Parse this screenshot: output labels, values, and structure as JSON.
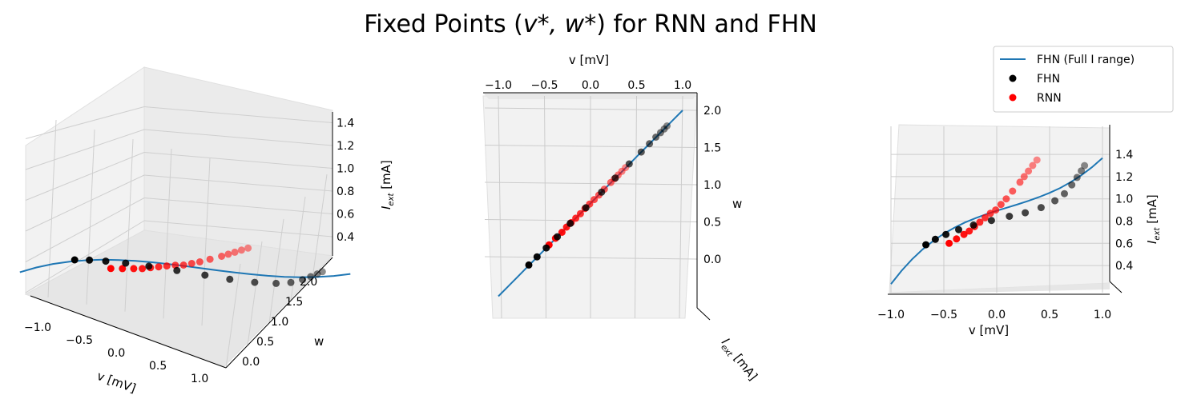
{
  "title_text": "Fixed Points (",
  "title_math": "v*, w*",
  "title_tail": ") for RNN and FHN",
  "legend": [
    {
      "label": "FHN (Full I range)",
      "kind": "line",
      "color": "#1f77b4"
    },
    {
      "label": "FHN",
      "kind": "point",
      "color": "#000000"
    },
    {
      "label": "RNN",
      "kind": "point",
      "color": "#ff0000"
    }
  ],
  "axis_labels": {
    "v": "v [mV]",
    "w": "w",
    "i": "I",
    "i_sub": "ext",
    "i_unit": " [mA]"
  },
  "colors": {
    "fhn_curve": "#1f77b4",
    "fhn_points": "#000000",
    "rnn_points": "#ff0000",
    "pane": "#f2f2f2",
    "grid": "#cccccc"
  },
  "chart_data": {
    "type": "scatter",
    "dimensions": [
      "v",
      "w",
      "I_ext"
    ],
    "axes": {
      "v": {
        "label": "v [mV]",
        "ticks": [
          "−1.0",
          "−0.5",
          "0.0",
          "0.5",
          "1.0"
        ]
      },
      "w": {
        "label": "w",
        "ticks": [
          "0.0",
          "0.5",
          "1.0",
          "1.5",
          "2.0"
        ]
      },
      "I_ext": {
        "label": "I_ext [mA]",
        "ticks": [
          "0.4",
          "0.6",
          "0.8",
          "1.0",
          "1.2",
          "1.4"
        ]
      }
    },
    "series": [
      {
        "name": "FHN (Full I range)",
        "mode": "line",
        "v": [
          -1.0,
          -0.9,
          -0.8,
          -0.7,
          -0.6,
          -0.5,
          -0.4,
          -0.3,
          -0.2,
          -0.1,
          0.0,
          0.1,
          0.2,
          0.3,
          0.4,
          0.5,
          0.6,
          0.7,
          0.8,
          0.9,
          1.0
        ],
        "w": [
          -0.5,
          -0.375,
          -0.25,
          -0.125,
          0.0,
          0.125,
          0.25,
          0.375,
          0.5,
          0.625,
          0.75,
          0.875,
          1.0,
          1.125,
          1.25,
          1.375,
          1.5,
          1.625,
          1.75,
          1.875,
          2.0
        ],
        "I_ext": [
          0.233,
          0.353,
          0.457,
          0.546,
          0.622,
          0.687,
          0.741,
          0.788,
          0.827,
          0.862,
          0.893,
          0.922,
          0.951,
          0.982,
          1.016,
          1.054,
          1.098,
          1.151,
          1.212,
          1.284,
          1.368
        ]
      },
      {
        "name": "FHN",
        "mode": "markers",
        "v": [
          -0.67,
          -0.58,
          -0.48,
          -0.36,
          -0.22,
          -0.05,
          0.12,
          0.27,
          0.42,
          0.55,
          0.64,
          0.71,
          0.76,
          0.8,
          0.83
        ],
        "w": [
          -0.08,
          0.03,
          0.15,
          0.3,
          0.48,
          0.69,
          0.9,
          1.09,
          1.28,
          1.44,
          1.55,
          1.64,
          1.7,
          1.75,
          1.79
        ],
        "I_ext": [
          0.587,
          0.636,
          0.68,
          0.723,
          0.764,
          0.806,
          0.843,
          0.875,
          0.922,
          0.983,
          1.047,
          1.126,
          1.193,
          1.252,
          1.299
        ]
      },
      {
        "name": "RNN",
        "mode": "markers",
        "v": [
          -0.45,
          -0.38,
          -0.31,
          -0.26,
          -0.21,
          -0.16,
          -0.11,
          -0.06,
          -0.01,
          0.04,
          0.09,
          0.15,
          0.22,
          0.26,
          0.3,
          0.34,
          0.38
        ],
        "w": [
          0.19,
          0.28,
          0.36,
          0.43,
          0.49,
          0.55,
          0.61,
          0.68,
          0.74,
          0.8,
          0.86,
          0.94,
          1.03,
          1.08,
          1.13,
          1.18,
          1.23
        ],
        "I_ext": [
          0.6,
          0.64,
          0.68,
          0.71,
          0.75,
          0.79,
          0.83,
          0.87,
          0.9,
          0.95,
          1.0,
          1.07,
          1.15,
          1.2,
          1.25,
          1.3,
          1.35
        ]
      }
    ]
  }
}
